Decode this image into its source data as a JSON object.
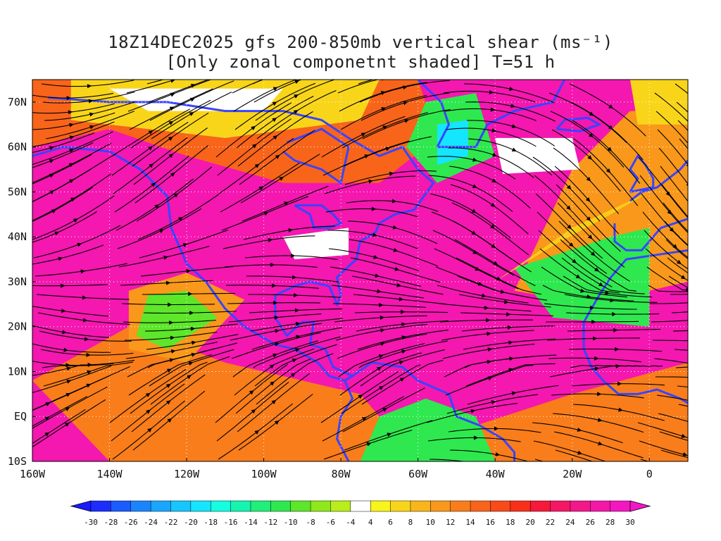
{
  "title": {
    "line1": "18Z14DEC2025 gfs 200-850mb vertical shear (ms⁻¹)",
    "line2": "[Only zonal componetnt shaded] T=51 h"
  },
  "map": {
    "lat_ticks": [
      "70N",
      "60N",
      "50N",
      "40N",
      "30N",
      "20N",
      "10N",
      "EQ",
      "10S"
    ],
    "lat_values": [
      70,
      60,
      50,
      40,
      30,
      20,
      10,
      0,
      -10
    ],
    "lon_ticks": [
      "160W",
      "140W",
      "120W",
      "100W",
      "80W",
      "60W",
      "40W",
      "20W",
      "0"
    ],
    "lon_values": [
      -160,
      -140,
      -120,
      -100,
      -80,
      -60,
      -40,
      -20,
      0
    ],
    "lat_range": [
      -10,
      75
    ],
    "lon_range": [
      -160,
      10
    ],
    "dominant_shading": "magenta (strong westerly shear 24-30 m/s)",
    "streamline_color": "#000000",
    "coastline_color": "#3a44ff"
  },
  "colorbar": {
    "labels": [
      "-30",
      "-28",
      "-26",
      "-24",
      "-22",
      "-20",
      "-18",
      "-16",
      "-14",
      "-12",
      "-10",
      "-8",
      "-6",
      "-4",
      "4",
      "6",
      "8",
      "10",
      "12",
      "14",
      "16",
      "18",
      "20",
      "22",
      "24",
      "26",
      "28",
      "30"
    ],
    "colors": [
      "#1c2dff",
      "#1a5cff",
      "#1a84ff",
      "#18a6ff",
      "#16c6ff",
      "#14e6ff",
      "#14ffe0",
      "#14f5b0",
      "#1ef07a",
      "#2fe84f",
      "#5ee62a",
      "#8fe81a",
      "#b8ee1a",
      "#ffffff",
      "#f8f51a",
      "#f9d51a",
      "#f9b61a",
      "#f9981a",
      "#f97d1a",
      "#f8641a",
      "#f84a1a",
      "#f8301a",
      "#f7183a",
      "#f51764",
      "#f4178a",
      "#f417a8",
      "#f417c0"
    ]
  }
}
